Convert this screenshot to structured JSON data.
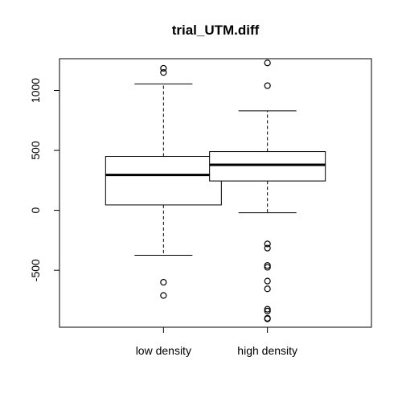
{
  "chart_data": {
    "type": "box",
    "title": "trial_UTM.diff",
    "xlabel": "",
    "ylabel": "",
    "categories": [
      "low density",
      "high density"
    ],
    "ylim": [
      -975,
      1265
    ],
    "yticks": [
      -500,
      0,
      500,
      1000
    ],
    "grid": false,
    "boxes": [
      {
        "name": "low density",
        "whisker_low": -375,
        "q1": 45,
        "median": 295,
        "q3": 450,
        "whisker_high": 1055,
        "outliers": [
          1185,
          1150,
          -600,
          -710
        ]
      },
      {
        "name": "high density",
        "whisker_low": -20,
        "q1": 245,
        "median": 380,
        "q3": 490,
        "whisker_high": 830,
        "outliers": [
          1230,
          1040,
          -280,
          -315,
          -460,
          -475,
          -590,
          -655,
          -825,
          -840,
          -900,
          -905
        ]
      }
    ]
  }
}
